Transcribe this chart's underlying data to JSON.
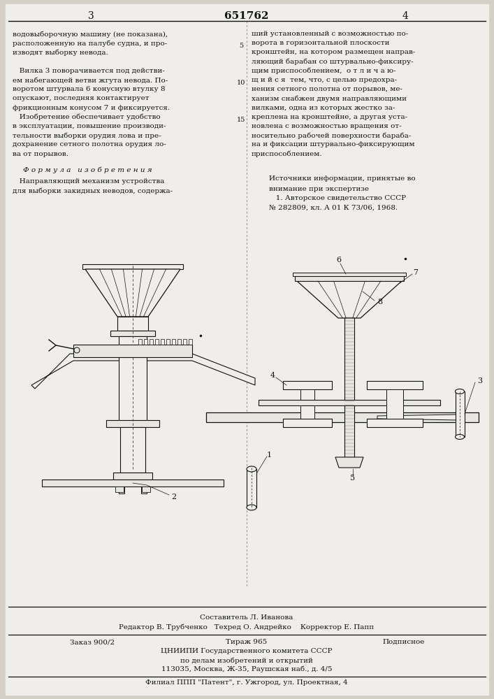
{
  "bg_color": "#d4d0c8",
  "page_color": "#f0eeea",
  "title_number": "651762",
  "page_left": "3",
  "page_right": "4",
  "left_col_lines": [
    "водовыборочную машину (не показана),",
    "расположенную на палубе судна, и про-",
    "изводят выборку невода.",
    "",
    "   Вилка 3 поворачивается под действи-",
    "ем набегающей ветви жгута невода. По-",
    "воротом штурвала 6 конусную втулку 8",
    "опускают, последняя контактирует",
    "фрикционным конусом 7 и фиксируется.",
    "   Изобретение обеспечивает удобство",
    "в эксплуатации, повышение производи-",
    "тельности выборки орудия лова и пре-",
    "дохранение сетного полотна орудия ло-",
    "ва от порывов."
  ],
  "formula_title": "Ф о р м у л а   и з о б р е т е н и я",
  "formula_lines": [
    "   Направляющий механизм устройства",
    "для выборки закидных неводов, содержа-"
  ],
  "right_col_lines": [
    "ший установленный с возможностью по-",
    "ворота в горизонтальной плоскости",
    "кронштейн, на котором размещен направ-",
    "ляющий барабан со штурвально-фиксиру-",
    "щим приспособлением,  о т л и ч а ю-",
    "щ и й с я  тем, что, с целью предохра-",
    "нения сетного полотна от порывов, ме-",
    "ханизм снабжен двумя направляющими",
    "вилками, одна из которых жестко за-",
    "креплена на кронштейне, а другая уста-",
    "новлена с возможностью вращения от-",
    "носительно рабочей поверхности бараба-",
    "на и фиксации штурвально-фиксирующим",
    "приспособлением."
  ],
  "sources_header": "Источники информации, принятые во",
  "sources_lines": [
    "внимание при экспертизе",
    "   1. Авторское свидетельство СССР",
    "№ 282809, кл. А 01 К 73/06, 1968."
  ],
  "footer1": "Составитель Л. Иванова",
  "footer2": "Редактор В. Трубченко   Техред О. Андрейко    Корректор Е. Папп",
  "footer3_left": "Заказ 900/2",
  "footer3_mid": "Тираж 965",
  "footer3_right": "Подписное",
  "footer4": "ЦНИИПИ Государственного комитета СССР",
  "footer5": "по делам изобретений и открытий",
  "footer6": "113035, Москва, Ж-35, Раушская наб., д. 4/5",
  "footer7": "Филиал ППП \"Патент\", г. Ужгород, ул. Проектная, 4",
  "tc": "#111111",
  "lc": "#111111",
  "fc": "#e8e6e0",
  "fc2": "#f0eeea"
}
